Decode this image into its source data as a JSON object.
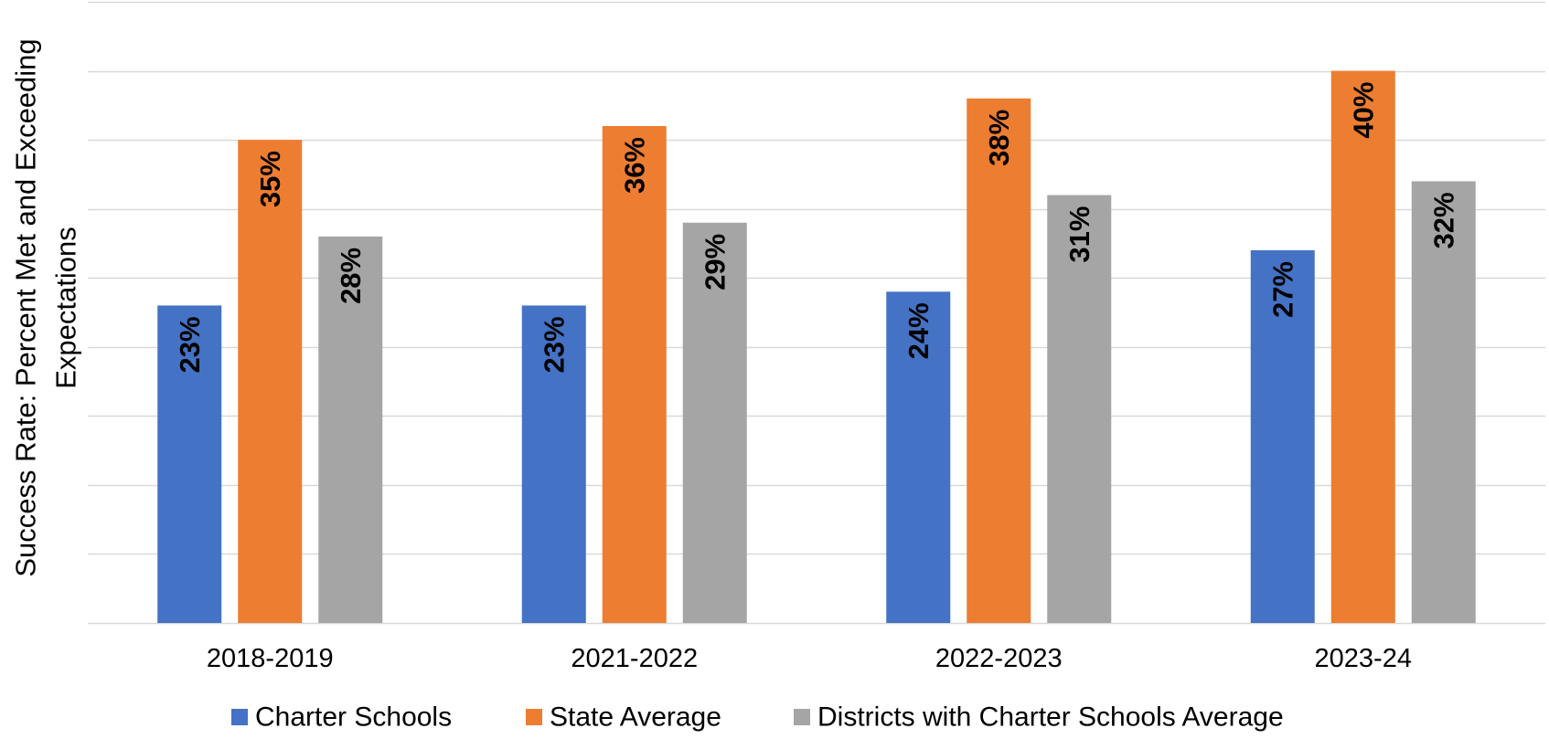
{
  "chart_data": {
    "type": "bar",
    "title": "",
    "xlabel": "",
    "ylabel": "Success Rate: Percent Met and Exceeding Expectations",
    "ylabel_lines": [
      "Success Rate: Percent Met and Exceeding",
      "Expectations"
    ],
    "categories": [
      "2018-2019",
      "2021-2022",
      "2022-2023",
      "2023-24"
    ],
    "series": [
      {
        "name": "Charter Schools",
        "color": "#4472C4",
        "values": [
          23,
          23,
          24,
          27
        ],
        "labels": [
          "23%",
          "23%",
          "24%",
          "27%"
        ]
      },
      {
        "name": "State Average",
        "color": "#ED7D31",
        "values": [
          35,
          36,
          38,
          40
        ],
        "labels": [
          "35%",
          "36%",
          "38%",
          "40%"
        ]
      },
      {
        "name": "Districts with Charter Schools Average",
        "color": "#A5A5A5",
        "values": [
          28,
          29,
          31,
          32
        ],
        "labels": [
          "28%",
          "29%",
          "31%",
          "32%"
        ]
      }
    ],
    "ylim": [
      0,
      45
    ],
    "gridline_step": 5,
    "grid": true,
    "y_tick_labels_visible": false,
    "legend": "bottom",
    "data_label_color": "#000000",
    "gridline_color": "#d9d9d9",
    "axis_text_color": "#000000"
  }
}
